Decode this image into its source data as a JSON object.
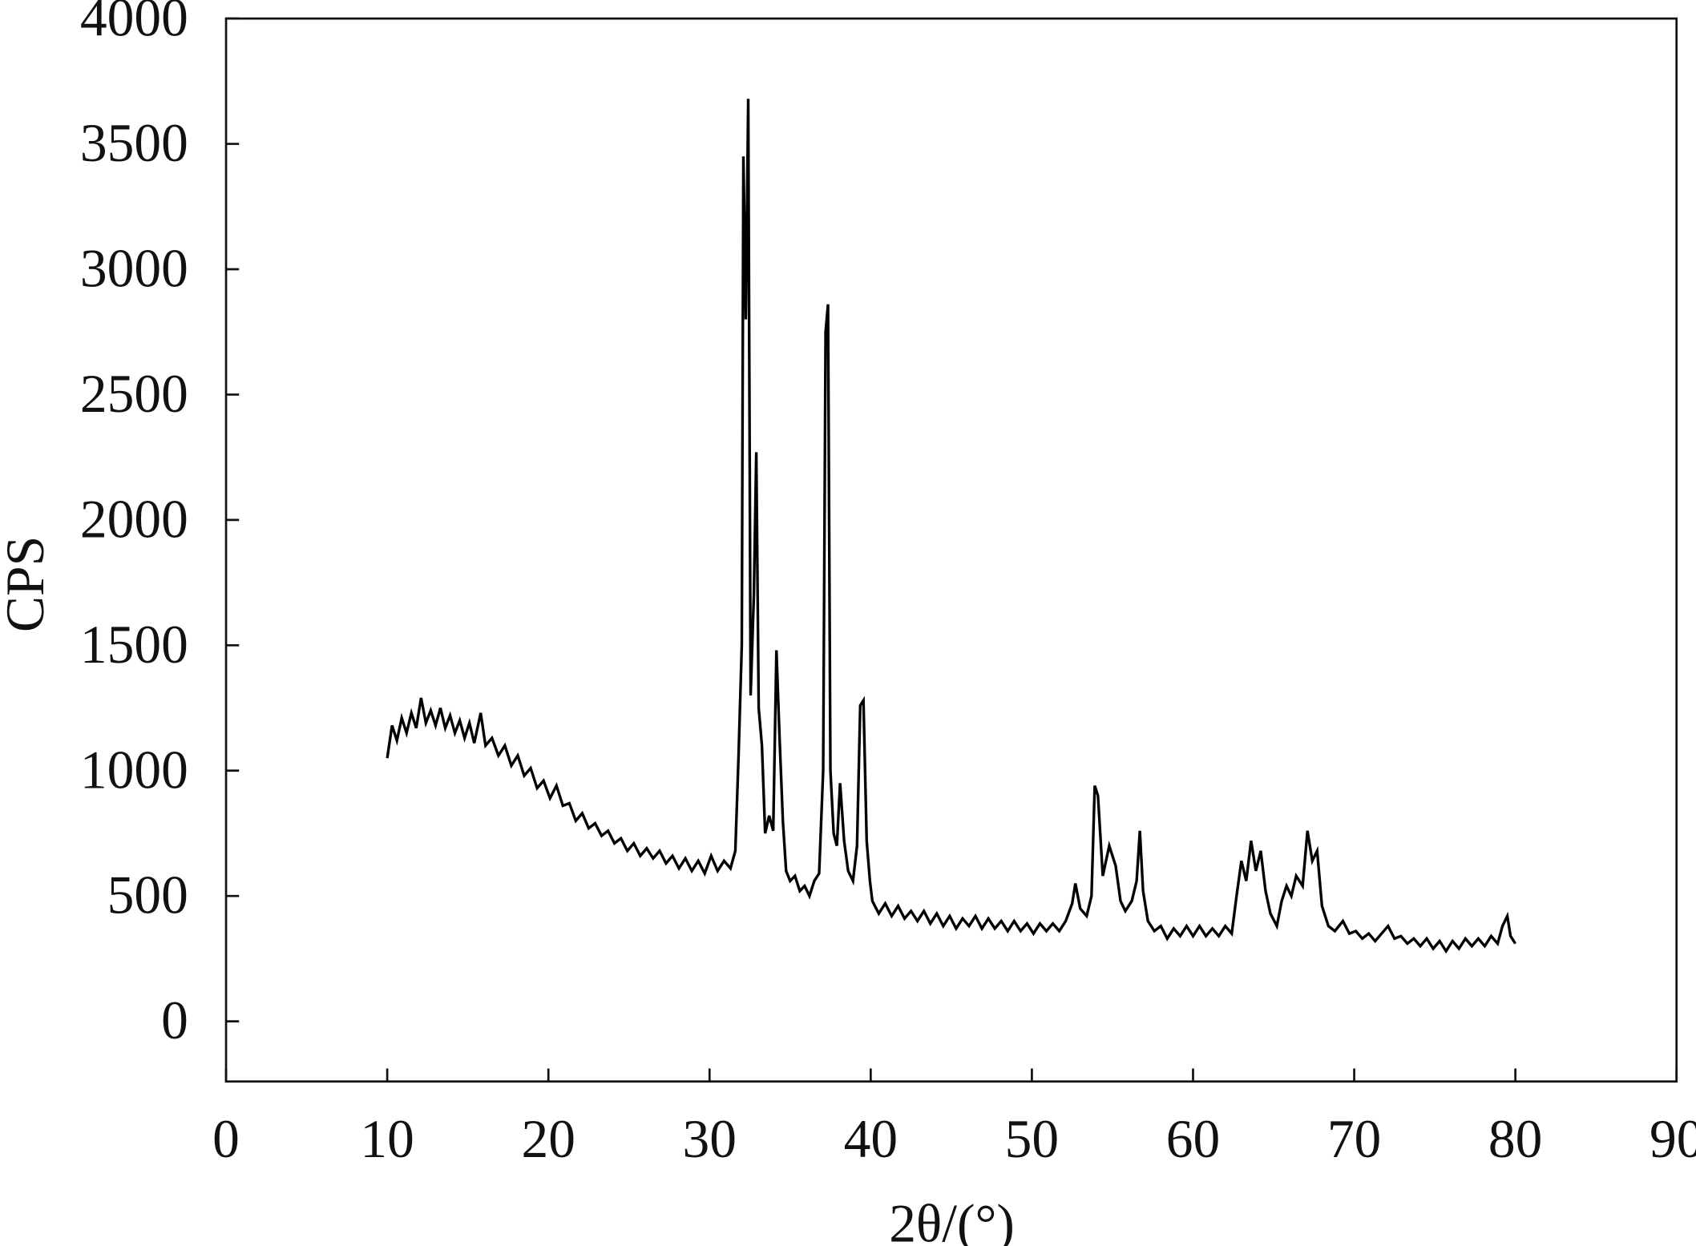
{
  "chart_data": {
    "type": "line",
    "x_label": "2θ/(°)",
    "y_label": "CPS",
    "color": "#000000",
    "xlim": [
      0,
      90
    ],
    "xticks": [
      0,
      10,
      20,
      30,
      40,
      50,
      60,
      70,
      80,
      90
    ],
    "ylim": [
      -240,
      4000
    ],
    "yticks": [
      0,
      500,
      1000,
      1500,
      2000,
      2500,
      3000,
      3500,
      4000
    ],
    "x": [
      10,
      10.3,
      10.6,
      10.9,
      11.2,
      11.5,
      11.8,
      12.1,
      12.4,
      12.7,
      13,
      13.3,
      13.6,
      13.9,
      14.2,
      14.5,
      14.8,
      15.1,
      15.4,
      15.8,
      16.1,
      16.5,
      16.9,
      17.3,
      17.7,
      18.1,
      18.5,
      18.9,
      19.3,
      19.7,
      20.1,
      20.5,
      20.9,
      21.3,
      21.7,
      22.1,
      22.5,
      22.9,
      23.3,
      23.7,
      24.1,
      24.5,
      24.9,
      25.3,
      25.7,
      26.1,
      26.5,
      26.9,
      27.3,
      27.7,
      28.1,
      28.5,
      28.9,
      29.3,
      29.7,
      30.1,
      30.5,
      30.9,
      31.3,
      31.6,
      31.8,
      32.0,
      32.1,
      32.25,
      32.4,
      32.55,
      32.75,
      32.9,
      33.05,
      33.25,
      33.45,
      33.7,
      33.95,
      34.15,
      34.35,
      34.55,
      34.75,
      35,
      35.3,
      35.6,
      35.9,
      36.2,
      36.5,
      36.8,
      37.05,
      37.2,
      37.35,
      37.5,
      37.7,
      37.9,
      38.1,
      38.35,
      38.6,
      38.9,
      39.15,
      39.35,
      39.55,
      39.75,
      39.95,
      40.1,
      40.5,
      40.9,
      41.3,
      41.7,
      42.1,
      42.5,
      42.9,
      43.3,
      43.7,
      44.1,
      44.5,
      44.9,
      45.3,
      45.7,
      46.1,
      46.5,
      46.9,
      47.3,
      47.7,
      48.1,
      48.5,
      48.9,
      49.3,
      49.7,
      50.1,
      50.5,
      50.9,
      51.3,
      51.7,
      52.1,
      52.5,
      52.7,
      53,
      53.4,
      53.7,
      53.9,
      54.1,
      54.4,
      54.8,
      55.2,
      55.5,
      55.8,
      56.2,
      56.5,
      56.7,
      56.9,
      57.2,
      57.6,
      58,
      58.4,
      58.8,
      59.2,
      59.6,
      60,
      60.4,
      60.8,
      61.2,
      61.6,
      62,
      62.4,
      62.7,
      63,
      63.3,
      63.6,
      63.9,
      64.2,
      64.5,
      64.8,
      65.2,
      65.5,
      65.8,
      66.1,
      66.4,
      66.8,
      67.1,
      67.4,
      67.7,
      68,
      68.4,
      68.8,
      69.3,
      69.7,
      70.1,
      70.5,
      70.9,
      71.3,
      71.7,
      72.1,
      72.5,
      72.9,
      73.3,
      73.7,
      74.1,
      74.5,
      74.9,
      75.3,
      75.7,
      76.1,
      76.5,
      76.9,
      77.3,
      77.7,
      78.1,
      78.5,
      78.9,
      79.2,
      79.5,
      79.7,
      80
    ],
    "values": [
      1050,
      1180,
      1120,
      1210,
      1150,
      1230,
      1170,
      1290,
      1190,
      1240,
      1180,
      1250,
      1170,
      1220,
      1150,
      1200,
      1130,
      1190,
      1110,
      1230,
      1100,
      1130,
      1060,
      1100,
      1020,
      1060,
      980,
      1010,
      930,
      960,
      890,
      940,
      860,
      870,
      800,
      830,
      770,
      790,
      740,
      760,
      710,
      730,
      680,
      710,
      660,
      690,
      650,
      680,
      630,
      660,
      610,
      650,
      600,
      640,
      590,
      660,
      600,
      640,
      610,
      680,
      1060,
      1500,
      3450,
      2800,
      3680,
      1300,
      1700,
      2270,
      1250,
      1100,
      750,
      820,
      760,
      1480,
      1120,
      800,
      600,
      560,
      580,
      520,
      540,
      500,
      560,
      590,
      1000,
      2750,
      2860,
      1000,
      750,
      700,
      950,
      720,
      600,
      560,
      700,
      1260,
      1280,
      720,
      560,
      480,
      430,
      470,
      420,
      460,
      410,
      440,
      400,
      440,
      390,
      430,
      380,
      420,
      370,
      410,
      380,
      420,
      370,
      410,
      370,
      400,
      360,
      400,
      360,
      390,
      350,
      390,
      360,
      390,
      360,
      400,
      470,
      550,
      450,
      420,
      500,
      940,
      900,
      580,
      700,
      620,
      480,
      440,
      480,
      560,
      760,
      520,
      400,
      360,
      380,
      330,
      370,
      340,
      380,
      340,
      380,
      340,
      370,
      340,
      380,
      350,
      500,
      640,
      560,
      720,
      600,
      680,
      520,
      430,
      380,
      480,
      540,
      500,
      580,
      540,
      760,
      640,
      680,
      460,
      380,
      360,
      400,
      350,
      360,
      330,
      350,
      320,
      350,
      380,
      330,
      340,
      310,
      330,
      300,
      330,
      290,
      320,
      280,
      320,
      290,
      330,
      300,
      330,
      300,
      340,
      310,
      380,
      420,
      340,
      310
    ]
  }
}
